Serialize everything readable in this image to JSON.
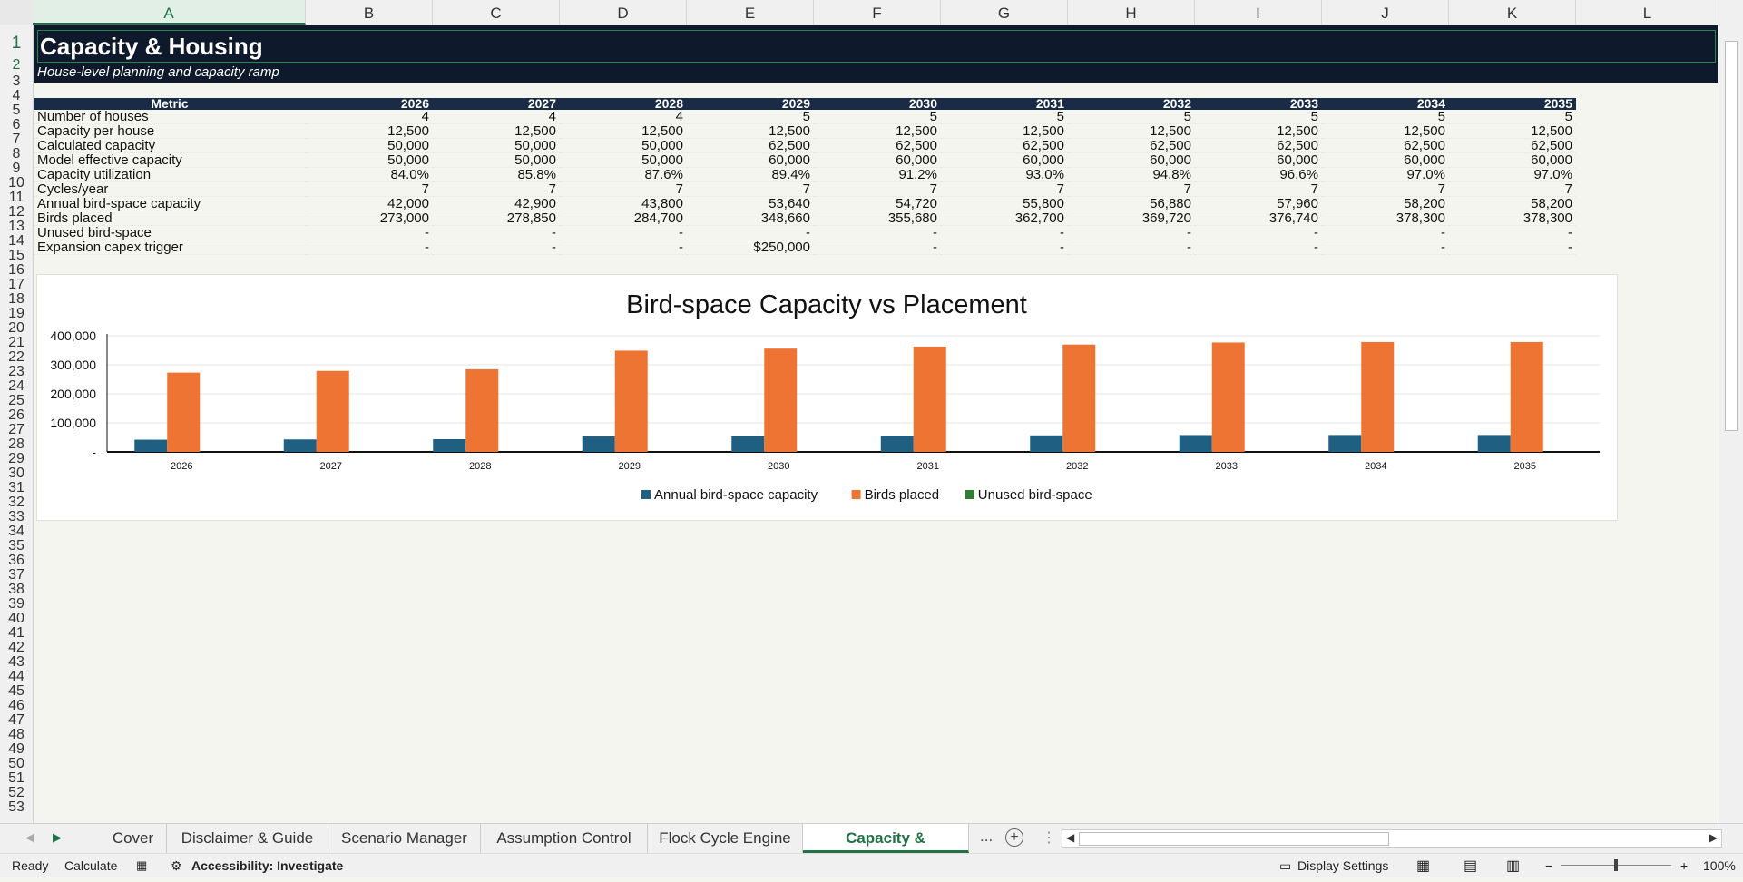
{
  "columns": [
    "A",
    "B",
    "C",
    "D",
    "E",
    "F",
    "G",
    "H",
    "I",
    "J",
    "K",
    "L"
  ],
  "rows": [
    "1",
    "2",
    "3",
    "4",
    "5",
    "6",
    "7",
    "8",
    "9",
    "10",
    "11",
    "12",
    "13",
    "14",
    "15",
    "16",
    "17",
    "18",
    "19",
    "20",
    "21",
    "22",
    "23",
    "24",
    "25",
    "26",
    "27",
    "28",
    "29",
    "30",
    "31",
    "32",
    "33",
    "34",
    "35",
    "36",
    "37",
    "38",
    "39",
    "40",
    "41",
    "42",
    "43",
    "44",
    "45",
    "46",
    "47",
    "48",
    "49",
    "50",
    "51",
    "52",
    "53"
  ],
  "sheet": {
    "title": "Capacity & Housing",
    "subtitle": "House-level planning and capacity ramp"
  },
  "table": {
    "header": [
      "Metric",
      "2026",
      "2027",
      "2028",
      "2029",
      "2030",
      "2031",
      "2032",
      "2033",
      "2034",
      "2035"
    ],
    "rows": [
      {
        "label": "Number of houses",
        "values": [
          "4",
          "4",
          "4",
          "5",
          "5",
          "5",
          "5",
          "5",
          "5",
          "5"
        ]
      },
      {
        "label": "Capacity per house",
        "values": [
          "12,500",
          "12,500",
          "12,500",
          "12,500",
          "12,500",
          "12,500",
          "12,500",
          "12,500",
          "12,500",
          "12,500"
        ]
      },
      {
        "label": "Calculated capacity",
        "values": [
          "50,000",
          "50,000",
          "50,000",
          "62,500",
          "62,500",
          "62,500",
          "62,500",
          "62,500",
          "62,500",
          "62,500"
        ]
      },
      {
        "label": "Model effective capacity",
        "values": [
          "50,000",
          "50,000",
          "50,000",
          "60,000",
          "60,000",
          "60,000",
          "60,000",
          "60,000",
          "60,000",
          "60,000"
        ]
      },
      {
        "label": "Capacity utilization",
        "values": [
          "84.0%",
          "85.8%",
          "87.6%",
          "89.4%",
          "91.2%",
          "93.0%",
          "94.8%",
          "96.6%",
          "97.0%",
          "97.0%"
        ]
      },
      {
        "label": "Cycles/year",
        "values": [
          "7",
          "7",
          "7",
          "7",
          "7",
          "7",
          "7",
          "7",
          "7",
          "7"
        ]
      },
      {
        "label": "Annual bird-space capacity",
        "values": [
          "42,000",
          "42,900",
          "43,800",
          "53,640",
          "54,720",
          "55,800",
          "56,880",
          "57,960",
          "58,200",
          "58,200"
        ]
      },
      {
        "label": "Birds placed",
        "values": [
          "273,000",
          "278,850",
          "284,700",
          "348,660",
          "355,680",
          "362,700",
          "369,720",
          "376,740",
          "378,300",
          "378,300"
        ]
      },
      {
        "label": "Unused bird-space",
        "values": [
          "-",
          "-",
          "-",
          "-",
          "-",
          "-",
          "-",
          "-",
          "-",
          "-"
        ]
      },
      {
        "label": "Expansion capex trigger",
        "values": [
          "-",
          "-",
          "-",
          "$250,000",
          "-",
          "-",
          "-",
          "-",
          "-",
          "-"
        ]
      }
    ]
  },
  "chart_data": {
    "type": "bar",
    "title": "Bird-space Capacity vs Placement",
    "categories": [
      "2026",
      "2027",
      "2028",
      "2029",
      "2030",
      "2031",
      "2032",
      "2033",
      "2034",
      "2035"
    ],
    "series": [
      {
        "name": "Annual bird-space capacity",
        "color": "#1f5f82",
        "values": [
          42000,
          42900,
          43800,
          53640,
          54720,
          55800,
          56880,
          57960,
          58200,
          58200
        ]
      },
      {
        "name": "Birds placed",
        "color": "#ed7433",
        "values": [
          273000,
          278850,
          284700,
          348660,
          355680,
          362700,
          369720,
          376740,
          378300,
          378300
        ]
      },
      {
        "name": "Unused bird-space",
        "color": "#2e7d32",
        "values": [
          0,
          0,
          0,
          0,
          0,
          0,
          0,
          0,
          0,
          0
        ]
      }
    ],
    "y_ticks": [
      "-",
      "100,000",
      "200,000",
      "300,000",
      "400,000"
    ],
    "ylim": [
      0,
      400000
    ],
    "legend": "bottom",
    "grid": true
  },
  "tabs": {
    "items": [
      "Cover",
      "Disclaimer & Guide",
      "Scenario Manager",
      "Assumption Control",
      "Flock Cycle Engine",
      "Capacity & Housing"
    ],
    "active": "Capacity & Housing",
    "more": "..."
  },
  "status": {
    "ready": "Ready",
    "calculate": "Calculate",
    "accessibility": "Accessibility: Investigate",
    "display_settings": "Display Settings",
    "zoom": "100%"
  }
}
